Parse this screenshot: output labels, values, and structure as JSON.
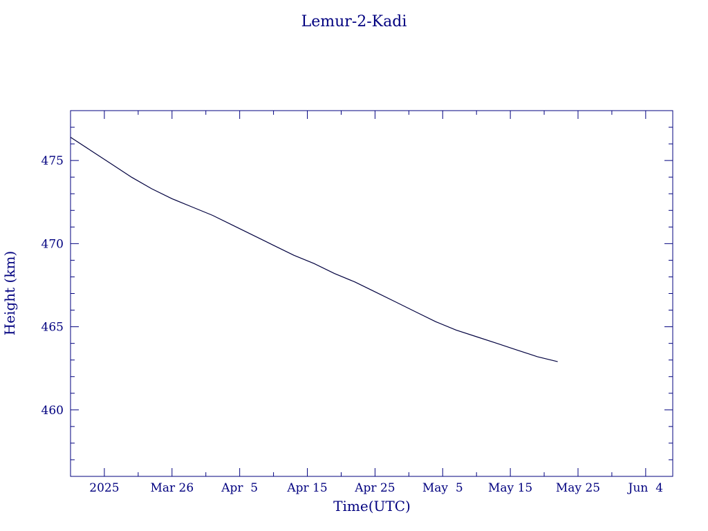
{
  "chart_data": {
    "type": "line",
    "title": "Lemur-2-Kadi",
    "xlabel": "Time(UTC)",
    "ylabel": "Height (km)",
    "x_axis": {
      "type": "date",
      "range": [
        "2025-03-11",
        "2025-06-08"
      ],
      "ticks": [
        {
          "date": "2025-03-16",
          "label": "2025"
        },
        {
          "date": "2025-03-26",
          "label": "Mar 26"
        },
        {
          "date": "2025-04-05",
          "label": "Apr  5"
        },
        {
          "date": "2025-04-15",
          "label": "Apr 15"
        },
        {
          "date": "2025-04-25",
          "label": "Apr 25"
        },
        {
          "date": "2025-05-05",
          "label": "May  5"
        },
        {
          "date": "2025-05-15",
          "label": "May 15"
        },
        {
          "date": "2025-05-25",
          "label": "May 25"
        },
        {
          "date": "2025-06-04",
          "label": "Jun  4"
        }
      ]
    },
    "y_axis": {
      "range": [
        456,
        478
      ],
      "ticks": [
        460,
        465,
        470,
        475
      ]
    },
    "grid": false,
    "colors": {
      "line": "#00003f",
      "axes": "#00007f",
      "text": "#00007f"
    },
    "series": [
      {
        "x": [
          "2025-03-11",
          "2025-03-14",
          "2025-03-17",
          "2025-03-20",
          "2025-03-23",
          "2025-03-26",
          "2025-03-29",
          "2025-04-01",
          "2025-04-04",
          "2025-04-07",
          "2025-04-10",
          "2025-04-13",
          "2025-04-16",
          "2025-04-19",
          "2025-04-22",
          "2025-04-25",
          "2025-04-28",
          "2025-05-01",
          "2025-05-04",
          "2025-05-07",
          "2025-05-10",
          "2025-05-13",
          "2025-05-16",
          "2025-05-19",
          "2025-05-22"
        ],
        "y": [
          476.4,
          475.6,
          474.8,
          474.0,
          473.3,
          472.7,
          472.2,
          471.7,
          471.1,
          470.5,
          469.9,
          469.3,
          468.8,
          468.2,
          467.7,
          467.1,
          466.5,
          465.9,
          465.3,
          464.8,
          464.4,
          464.0,
          463.6,
          463.2,
          462.9
        ]
      }
    ]
  }
}
